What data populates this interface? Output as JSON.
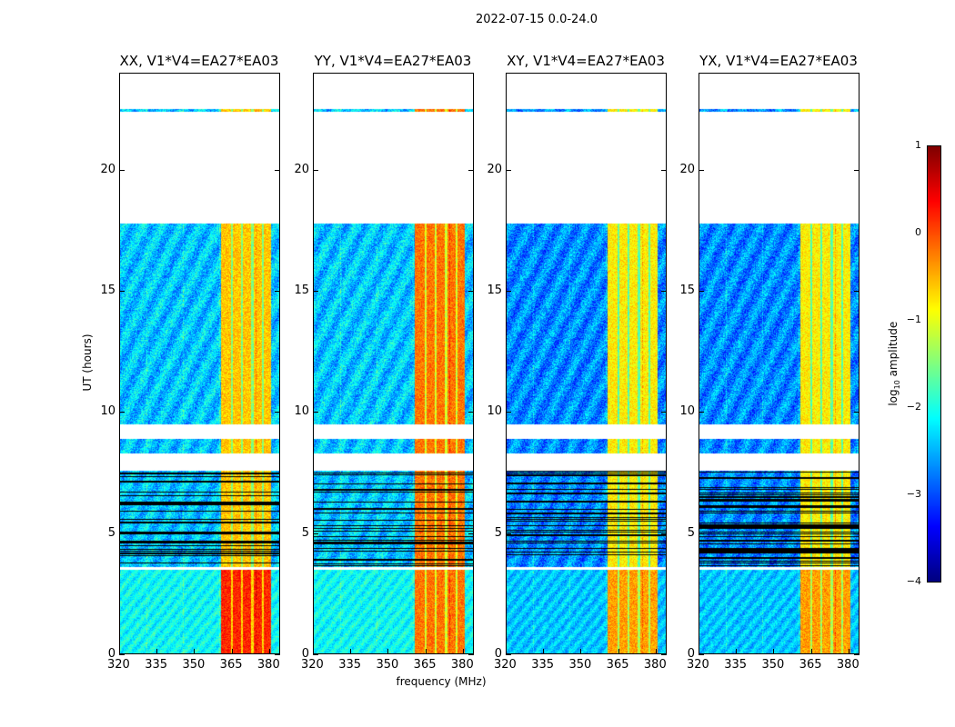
{
  "chart_data": {
    "type": "heatmap",
    "title": "2022-07-15 0.0-24.0",
    "xlabel": "frequency (MHz)",
    "ylabel": "UT (hours)",
    "xlim": [
      320,
      384.4
    ],
    "ylim": [
      0,
      24
    ],
    "xticks": [
      "320",
      "335",
      "350",
      "365",
      "380"
    ],
    "yticks": [
      "0",
      "5",
      "10",
      "15",
      "20"
    ],
    "panels": [
      {
        "title": "XX, V1*V4=EA27*EA03",
        "bg_level": -2.4,
        "band_level": -0.6,
        "low_band_level": 0.2
      },
      {
        "title": "YY, V1*V4=EA27*EA03",
        "bg_level": -2.4,
        "band_level": -0.2,
        "low_band_level": -0.2
      },
      {
        "title": "XY, V1*V4=EA27*EA03",
        "bg_level": -2.7,
        "band_level": -0.8,
        "low_band_level": -0.4
      },
      {
        "title": "YX, V1*V4=EA27*EA03",
        "bg_level": -2.7,
        "band_level": -0.8,
        "low_band_level": -0.4
      }
    ],
    "band_MHz": [
      360.7,
      380.4
    ],
    "data_time_ranges_hours": [
      [
        0,
        3.5
      ],
      [
        3.6,
        7.6
      ],
      [
        8.3,
        8.9
      ],
      [
        9.5,
        17.8
      ],
      [
        22.4,
        22.5
      ]
    ],
    "colorbar": {
      "label": "log10 amplitude",
      "label_main": "log",
      "label_sub": "10",
      "label_rest": " amplitude",
      "range": [
        -4,
        1
      ],
      "ticks": [
        "1",
        "0",
        "−1",
        "−2",
        "−3",
        "−4"
      ],
      "colormap": "jet"
    }
  }
}
